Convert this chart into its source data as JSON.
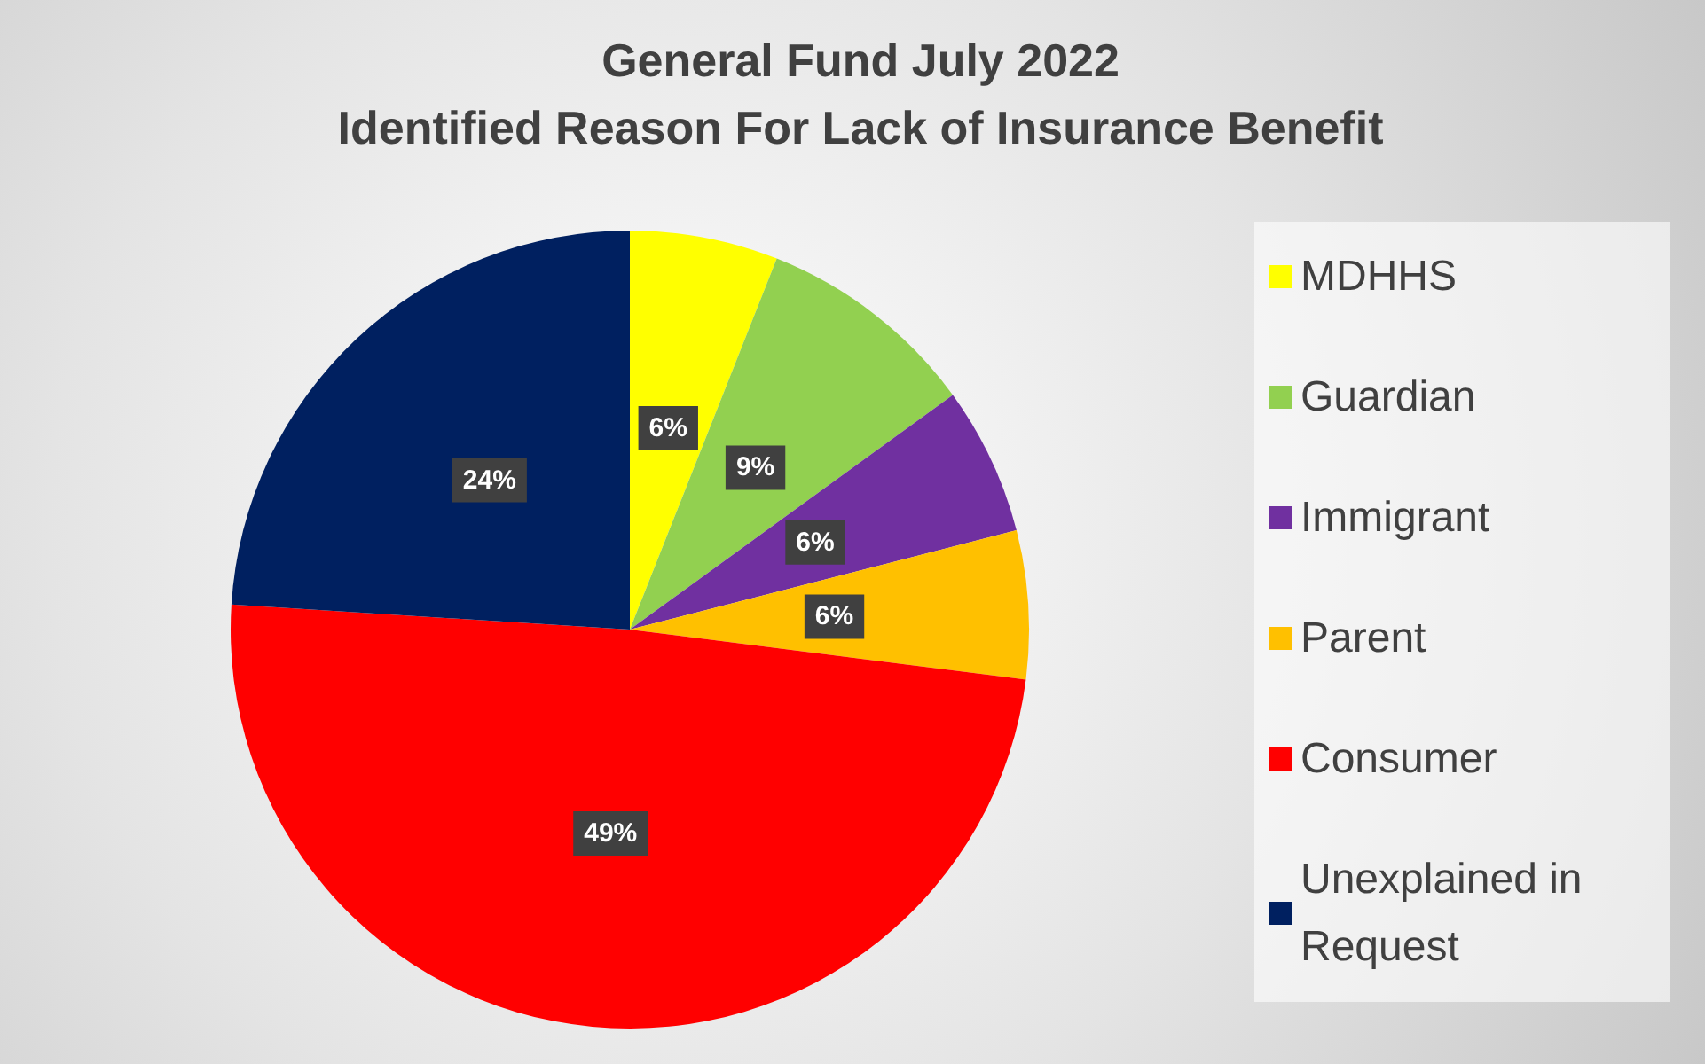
{
  "chart_data": {
    "type": "pie",
    "title": "General Fund July 2022\nIdentified Reason For Lack of Insurance Benefit",
    "categories": [
      "MDHHS",
      "Guardian",
      "Immigrant",
      "Parent",
      "Consumer",
      "Unexplained in Request"
    ],
    "values": [
      6,
      9,
      6,
      6,
      49,
      24
    ],
    "colors": [
      "#ffff00",
      "#92d050",
      "#7030a0",
      "#ffc000",
      "#ff0000",
      "#002060"
    ],
    "value_labels": [
      "6%",
      "9%",
      "6%",
      "6%",
      "49%",
      "24%"
    ],
    "legend": "right"
  }
}
